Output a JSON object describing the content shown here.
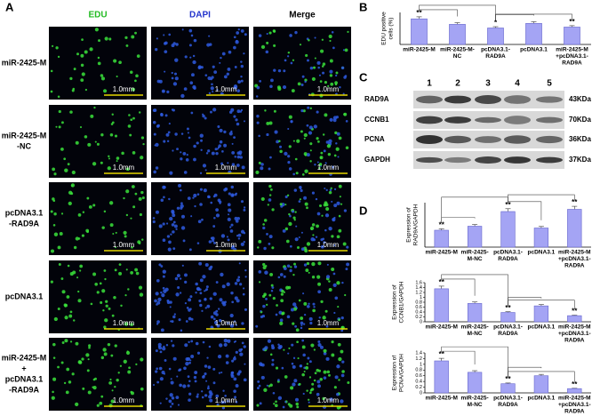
{
  "panels": {
    "a": "A",
    "b": "B",
    "c": "C",
    "d": "D"
  },
  "microscopy": {
    "columns": [
      {
        "label": "EDU",
        "color": "#22bb22"
      },
      {
        "label": "DAPI",
        "color": "#2233cc"
      },
      {
        "label": "Merge",
        "color": "#000000"
      }
    ],
    "rows": [
      [
        "miR-2425-M"
      ],
      [
        "miR-2425-M",
        "-NC"
      ],
      [
        "pcDNA3.1",
        "-RAD9A"
      ],
      [
        "pcDNA3.1"
      ],
      [
        "miR-2425-M",
        "+",
        "pcDNA3.1",
        "-RAD9A"
      ]
    ],
    "scale_bar": "1.0mm"
  },
  "western_blot": {
    "lanes": [
      "1",
      "2",
      "3",
      "4",
      "5"
    ],
    "proteins": [
      {
        "name": "RAD9A",
        "size": "43KDa"
      },
      {
        "name": "CCNB1",
        "size": "70KDa"
      },
      {
        "name": "PCNA",
        "size": "36KDa"
      },
      {
        "name": "GAPDH",
        "size": "37KDa"
      }
    ]
  },
  "chart_data": [
    {
      "type": "bar",
      "y_label": [
        "EDU positive",
        "cells (%)"
      ],
      "color": "#a4a4f4",
      "categories": [
        [
          "miR-2425-M"
        ],
        [
          "miR-2425-M-",
          "NC"
        ],
        [
          "pcDNA3.1-",
          "RAD9A"
        ],
        [
          "pcDNA3.1"
        ],
        [
          "miR-2425-M",
          "+pcDNA3.1-",
          "RAD9A"
        ]
      ],
      "values": [
        28,
        22,
        18,
        23,
        19
      ],
      "annotations": [
        "**",
        null,
        "*",
        null,
        "**"
      ],
      "ylim": [
        0,
        35
      ]
    },
    {
      "type": "bar",
      "y_label": [
        "Expression of",
        "RAD9A/GAPDH"
      ],
      "color": "#a4a4f4",
      "categories": [
        [
          "miR-2425-M"
        ],
        [
          "miR-2425-",
          "M-NC"
        ],
        [
          "pcDNA3.1-",
          "RAD9A"
        ],
        [
          "pcDNA3.1"
        ],
        [
          "miR-2425-M",
          "+pcDNA3.1-",
          "RAD9A"
        ]
      ],
      "values": [
        0.38,
        0.47,
        0.8,
        0.43,
        0.85
      ],
      "annotations": [
        "**",
        null,
        "**",
        null,
        "**"
      ],
      "ylim": [
        0,
        1
      ]
    },
    {
      "type": "bar",
      "y_label": [
        "Expression of",
        "CCNB1/GAPDH"
      ],
      "color": "#a4a4f4",
      "categories": [
        [
          "miR-2425-M"
        ],
        [
          "miR-2425-",
          "M-NC"
        ],
        [
          "pcDNA3.1-",
          "RAD9A"
        ],
        [
          "pcDNA3.1"
        ],
        [
          "miR-2425-M",
          "+pcDNA3.1-",
          "RAD9A"
        ]
      ],
      "values": [
        1.35,
        0.75,
        0.38,
        0.65,
        0.25
      ],
      "annotations": [
        "**",
        null,
        "**",
        null,
        "**"
      ],
      "ylim": [
        0,
        1.6
      ],
      "yticks": [
        0,
        0.2,
        0.4,
        0.6,
        0.8,
        1,
        1.2,
        1.4,
        1.6
      ]
    },
    {
      "type": "bar",
      "y_label": [
        "Expression of",
        "PCNA/GAPDH"
      ],
      "color": "#a4a4f4",
      "categories": [
        [
          "miR-2425-M"
        ],
        [
          "miR-2425-",
          "M-NC"
        ],
        [
          "pcDNA3.1-",
          "RAD9A"
        ],
        [
          "pcDNA3.1"
        ],
        [
          "miR-2425-M",
          "+pcDNA3.1-",
          "RAD9A"
        ]
      ],
      "values": [
        1.12,
        0.72,
        0.32,
        0.6,
        0.15
      ],
      "annotations": [
        "**",
        null,
        "**",
        null,
        "**"
      ],
      "ylim": [
        0,
        1.4
      ],
      "yticks": [
        0,
        0.2,
        0.4,
        0.6,
        0.8,
        1,
        1.2,
        1.4
      ]
    }
  ]
}
